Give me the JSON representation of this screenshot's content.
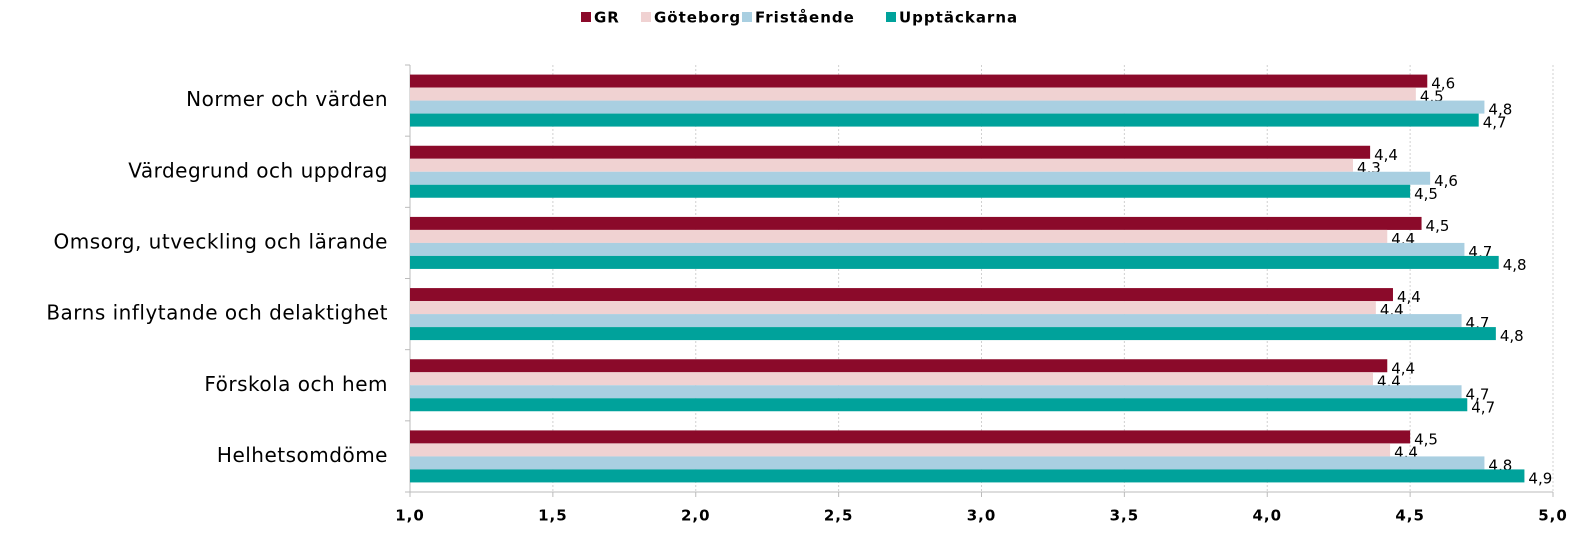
{
  "chart_data": {
    "type": "hbar",
    "categories": [
      "Normer och värden",
      "Värdegrund och uppdrag",
      "Omsorg, utveckling och lärande",
      "Barns inflytande och delaktighet",
      "Förskola och hem",
      "Helhetsomdöme"
    ],
    "series": [
      {
        "name": "GR",
        "color": "#8b0a2a",
        "values": [
          4.56,
          4.36,
          4.54,
          4.44,
          4.42,
          4.5
        ],
        "value_labels": [
          "4,6",
          "4,4",
          "4,5",
          "4,4",
          "4,4",
          "4,5"
        ]
      },
      {
        "name": "Göteborg",
        "color": "#f0d2d2",
        "values": [
          4.52,
          4.3,
          4.42,
          4.38,
          4.37,
          4.43
        ],
        "value_labels": [
          "4,5",
          "4,3",
          "4,4",
          "4,4",
          "4,4",
          "4,4"
        ]
      },
      {
        "name": "Fristående",
        "color": "#a9cfe1",
        "values": [
          4.76,
          4.57,
          4.69,
          4.68,
          4.68,
          4.76
        ],
        "value_labels": [
          "4,8",
          "4,6",
          "4,7",
          "4,7",
          "4,7",
          "4,8"
        ]
      },
      {
        "name": "Upptäckarna",
        "color": "#00a29b",
        "values": [
          4.74,
          4.5,
          4.81,
          4.8,
          4.7,
          4.9
        ],
        "value_labels": [
          "4,7",
          "4,5",
          "4,8",
          "4,8",
          "4,7",
          "4,9"
        ]
      }
    ],
    "xlim": [
      1.0,
      5.0
    ],
    "xticks": [
      {
        "value": 1.0,
        "label": "1,0"
      },
      {
        "value": 1.5,
        "label": "1,5"
      },
      {
        "value": 2.0,
        "label": "2,0"
      },
      {
        "value": 2.5,
        "label": "2,5"
      },
      {
        "value": 3.0,
        "label": "3,0"
      },
      {
        "value": 3.5,
        "label": "3,5"
      },
      {
        "value": 4.0,
        "label": "4,0"
      },
      {
        "value": 4.5,
        "label": "4,5"
      },
      {
        "value": 5.0,
        "label": "5,0"
      }
    ],
    "grid": true,
    "legend": "top"
  }
}
